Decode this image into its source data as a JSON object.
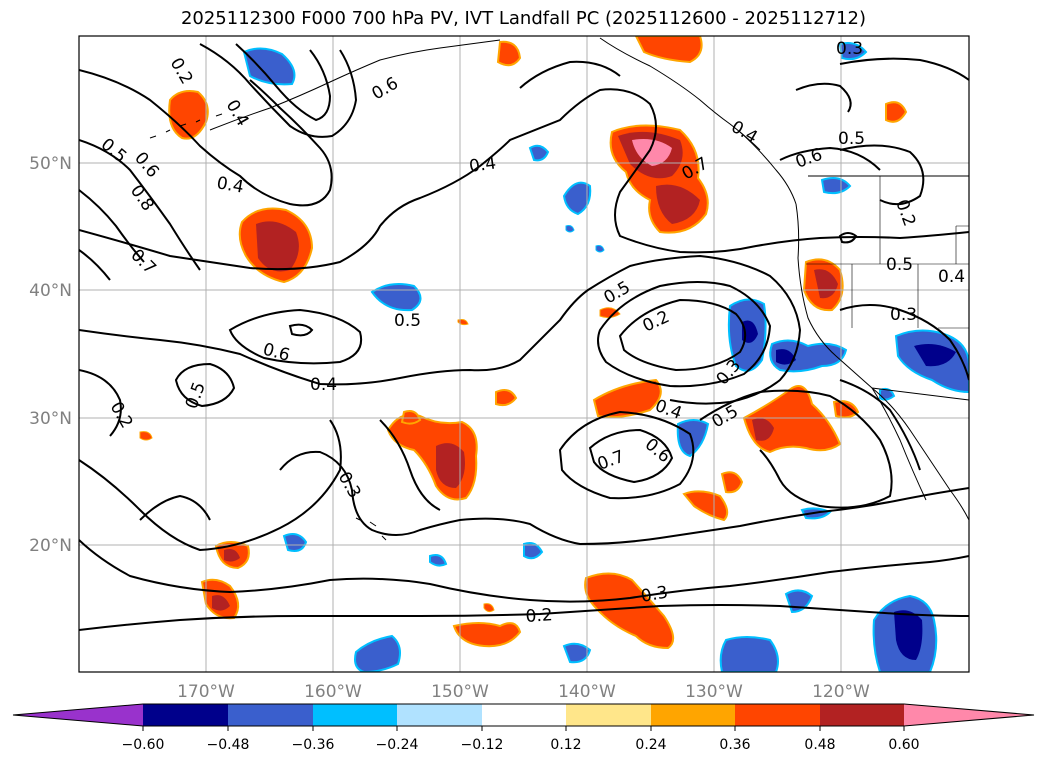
{
  "title": "2025112300 F000 700 hPa PV, IVT Landfall PC (2025112600 - 2025112712)",
  "map": {
    "lat_labels": [
      "50°N",
      "40°N",
      "30°N",
      "20°N"
    ],
    "lon_labels": [
      "170°W",
      "160°W",
      "150°W",
      "140°W",
      "130°W",
      "120°W"
    ],
    "contour_labels": [
      "0.2",
      "0.4",
      "0.6",
      "0.8",
      "0.7",
      "0.4",
      "0.5",
      "0.6",
      "0.4",
      "0.5",
      "0.2",
      "0.3",
      "0.2",
      "0.5",
      "0.2",
      "0.3",
      "0.4",
      "0.6",
      "0.7",
      "0.5",
      "0.3",
      "0.5",
      "0.4",
      "0.3",
      "0.6",
      "0.5",
      "0.6",
      "0.5",
      "0.4",
      "0.7",
      "0.3",
      "0.4",
      "0.2"
    ],
    "colors": {
      "coast": "#000000",
      "contour": "#000000",
      "grid": "#b0b0b0"
    }
  },
  "colorbar": {
    "tick_labels": [
      "−0.60",
      "−0.48",
      "−0.36",
      "−0.24",
      "−0.12",
      "0.12",
      "0.24",
      "0.36",
      "0.48",
      "0.60"
    ],
    "colors": [
      "#9932cc",
      "#00008b",
      "#3a5fcd",
      "#00bfff",
      "#b0e2ff",
      "#ffffff",
      "#ffe68a",
      "#ffa500",
      "#ff4500",
      "#b22222",
      "#ff88aa"
    ]
  }
}
